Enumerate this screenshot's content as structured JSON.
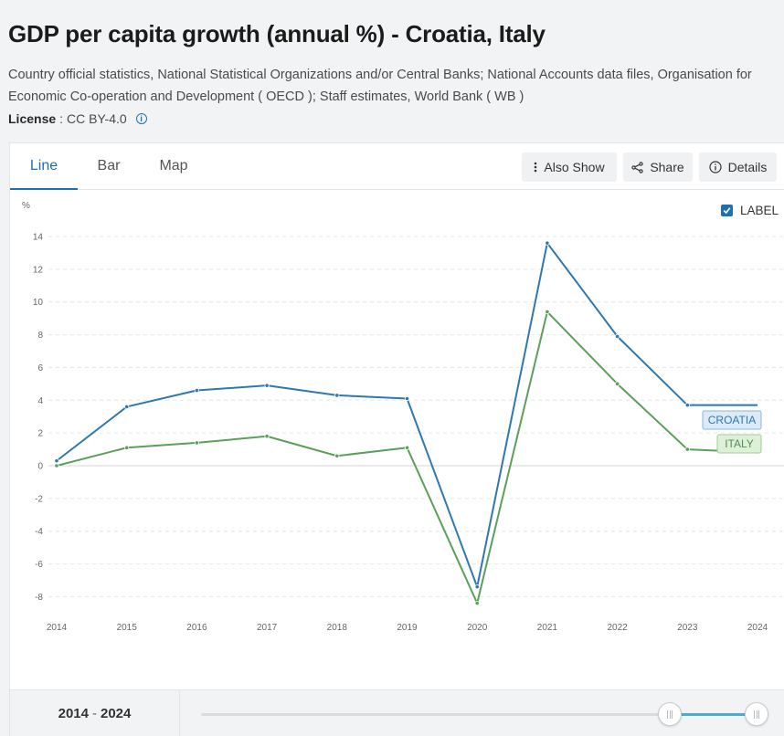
{
  "header": {
    "title": "GDP per capita growth (annual %) - Croatia, Italy",
    "sources": "Country official statistics, National Statistical Organizations and/or Central Banks; National Accounts data files, Organisation for Economic Co-operation and Development ( OECD ); Staff estimates, World Bank ( WB )",
    "license_label": "License",
    "license_sep": ":",
    "license_value": "CC BY-4.0"
  },
  "tabs": [
    {
      "label": "Line",
      "active": true
    },
    {
      "label": "Bar",
      "active": false
    },
    {
      "label": "Map",
      "active": false
    }
  ],
  "actions": {
    "also_show": "Also Show",
    "share": "Share",
    "details": "Details"
  },
  "label_toggle": {
    "text": "LABEL",
    "checked": true
  },
  "chart_data": {
    "type": "line",
    "title": "GDP per capita growth (annual %) - Croatia, Italy",
    "ylabel": "%",
    "xlabel": "",
    "x": [
      2014,
      2015,
      2016,
      2017,
      2018,
      2019,
      2020,
      2021,
      2022,
      2023,
      2024
    ],
    "yticks": [
      14,
      12,
      10,
      8,
      6,
      4,
      2,
      0,
      -2,
      -4,
      -6,
      -8
    ],
    "ylim": [
      -9,
      15
    ],
    "grid": true,
    "series": [
      {
        "name": "CROATIA",
        "color": "#2e78b2",
        "label_bg": "#dcebf7",
        "label_border": "#8bb7dc",
        "label_color": "#2e78b2",
        "values": [
          0.3,
          3.6,
          4.6,
          4.9,
          4.3,
          4.1,
          -7.4,
          13.6,
          7.9,
          3.7,
          3.7
        ]
      },
      {
        "name": "ITALY",
        "color": "#5aa05a",
        "label_bg": "#dff0d8",
        "label_border": "#9fcf8f",
        "label_color": "#4f8f4f",
        "values": [
          0.0,
          1.1,
          1.4,
          1.8,
          0.6,
          1.1,
          -8.4,
          9.4,
          5.0,
          1.0,
          0.8
        ]
      }
    ]
  },
  "range": {
    "start": "2014",
    "sep": "-",
    "end": "2024"
  }
}
